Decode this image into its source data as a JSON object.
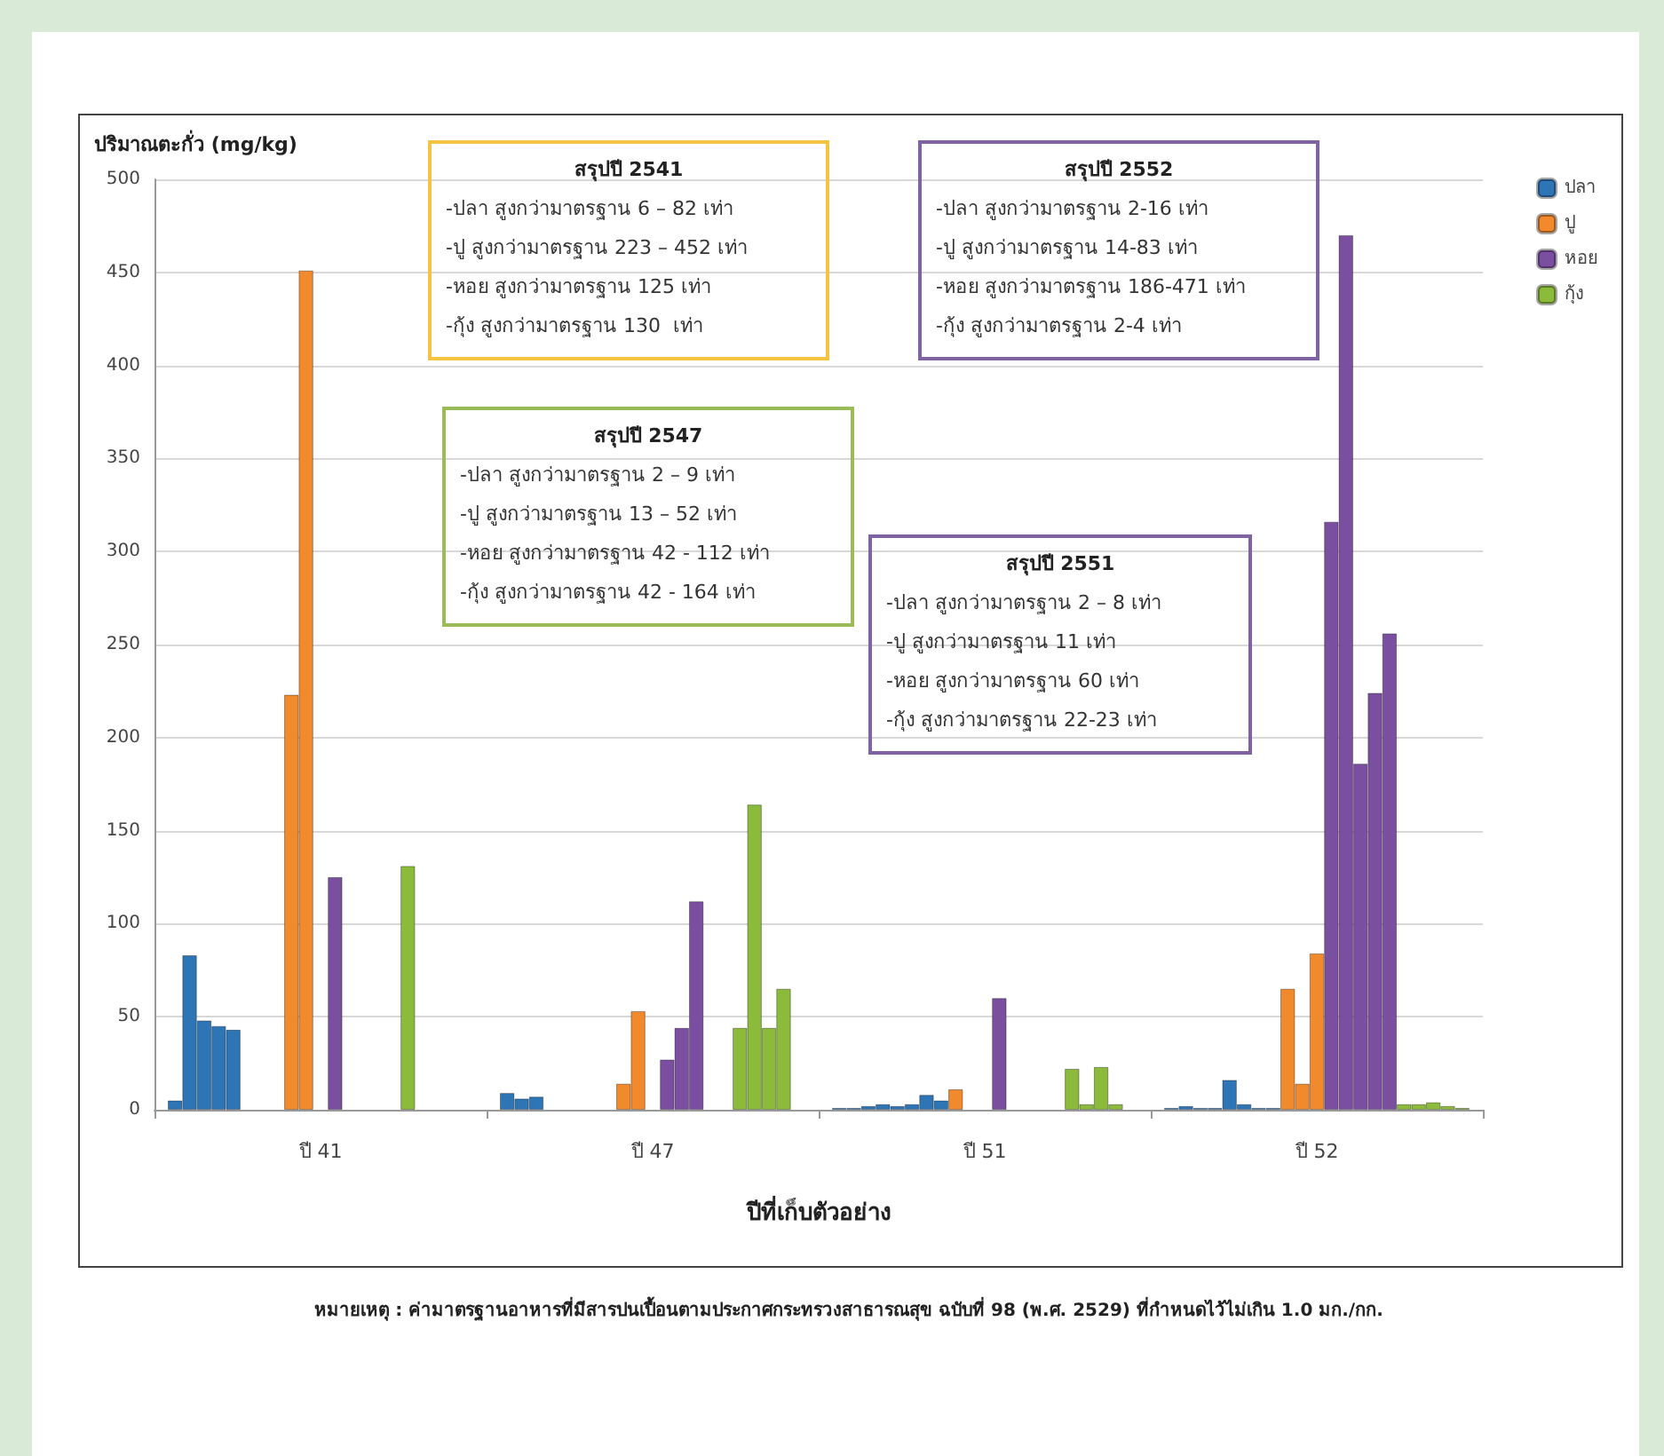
{
  "chart_data": {
    "type": "bar",
    "ylabel": "ปริมาณตะกั่ว (mg/kg)",
    "xlabel": "ปีที่เก็บตัวอย่าง",
    "categories": [
      "ปี 41",
      "ปี 47",
      "ปี 51",
      "ปี 52"
    ],
    "series": [
      {
        "name": "ปลา",
        "color": "#2e75b6",
        "values": [
          5,
          9,
          1,
          1
        ]
      },
      {
        "color": "#2e75b6",
        "values": [
          83,
          6,
          1,
          2
        ]
      },
      {
        "color": "#2e75b6",
        "values": [
          48,
          7,
          2,
          1
        ]
      },
      {
        "color": "#2e75b6",
        "values": [
          45,
          null,
          3,
          1
        ]
      },
      {
        "color": "#2e75b6",
        "values": [
          43,
          null,
          2,
          16
        ]
      },
      {
        "color": "#2e75b6",
        "values": [
          null,
          null,
          3,
          3
        ]
      },
      {
        "color": "#2e75b6",
        "values": [
          null,
          null,
          8,
          1
        ]
      },
      {
        "color": "#2e75b6",
        "values": [
          null,
          null,
          5,
          1
        ]
      },
      {
        "name": "ปู",
        "color": "#f08a2c",
        "values": [
          223,
          14,
          11,
          65
        ]
      },
      {
        "color": "#f08a2c",
        "values": [
          451,
          53,
          null,
          14
        ]
      },
      {
        "color": "#f08a2c",
        "values": [
          null,
          null,
          null,
          84
        ]
      },
      {
        "name": "หอย",
        "color": "#7b4fa0",
        "values": [
          125,
          27,
          60,
          316
        ]
      },
      {
        "color": "#7b4fa0",
        "values": [
          null,
          44,
          null,
          470
        ]
      },
      {
        "color": "#7b4fa0",
        "values": [
          null,
          112,
          null,
          186
        ]
      },
      {
        "color": "#7b4fa0",
        "values": [
          null,
          null,
          null,
          224
        ]
      },
      {
        "color": "#7b4fa0",
        "values": [
          null,
          null,
          null,
          256
        ]
      },
      {
        "name": "กุ้ง",
        "color": "#8cbb3c",
        "values": [
          131,
          44,
          22,
          3
        ]
      },
      {
        "color": "#8cbb3c",
        "values": [
          null,
          164,
          3,
          3
        ]
      },
      {
        "color": "#8cbb3c",
        "values": [
          null,
          44,
          23,
          4
        ]
      },
      {
        "color": "#8cbb3c",
        "values": [
          null,
          65,
          3,
          2
        ]
      },
      {
        "color": "#8cbb3c",
        "values": [
          null,
          null,
          null,
          1
        ]
      }
    ],
    "ylim": [
      0,
      500
    ],
    "yticks": [
      0,
      50,
      100,
      150,
      200,
      250,
      300,
      350,
      400,
      450,
      500
    ],
    "grid": "y",
    "legend": "right",
    "annotations": [
      "สรุปปี 2541\n-ปลา สูงกว่ามาตรฐาน 6 – 82 เท่า\n-ปู สูงกว่ามาตรฐาน 223 – 452 เท่า\n-หอย สูงกว่ามาตรฐาน 125 เท่า\n-กุ้ง สูงกว่ามาตรฐาน 130  เท่า",
      "สรุปปี 2547\n-ปลา สูงกว่ามาตรฐาน 2 – 9 เท่า\n-ปู สูงกว่ามาตรฐาน 13 – 52 เท่า\n-หอย สูงกว่ามาตรฐาน 42 - 112 เท่า\n-กุ้ง สูงกว่ามาตรฐาน 42 - 164 เท่า",
      "สรุปปี 2551\n-ปลา สูงกว่ามาตรฐาน 2 – 8 เท่า\n-ปู สูงกว่ามาตรฐาน 11 เท่า\n-หอย สูงกว่ามาตรฐาน 60 เท่า\n-กุ้ง สูงกว่ามาตรฐาน 22-23 เท่า",
      "สรุปปี 2552\n-ปลา สูงกว่ามาตรฐาน 2-16 เท่า\n-ปู สูงกว่ามาตรฐาน 14-83 เท่า\n-หอย สูงกว่ามาตรฐาน 186-471 เท่า\n-กุ้ง สูงกว่ามาตรฐาน 2-4 เท่า",
      "หมายเหตุ : ค่ามาตรฐานอาหารที่มีสารปนเปื้อนตามประกาศกระทรวงสาธารณสุข ฉบับที่ 98 (พ.ศ. 2529) ที่กำหนดไว้ไม่เกิน 1.0 มก./กก."
    ]
  }
}
